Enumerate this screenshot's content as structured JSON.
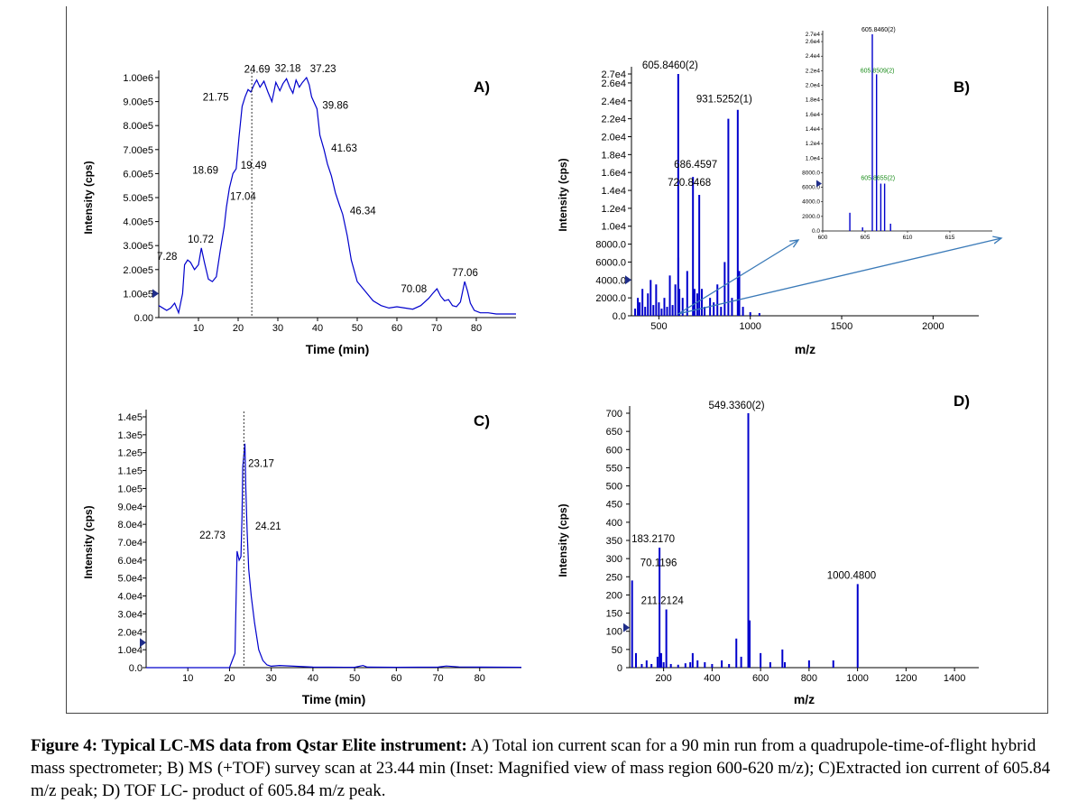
{
  "colors": {
    "trace": "#0000cc",
    "inset_annotation": "#1a8c1a",
    "zoom_arrow": "#3a7ab8",
    "axis": "#000000"
  },
  "caption": {
    "bold": "Figure 4: Typical LC-MS data from Qstar Elite instrument:",
    "text": " A) Total ion current scan for a 90 min run from a quadrupole-time-of-flight hybrid mass spectrometer; B) MS (+TOF) survey scan at 23.44 min (Inset: Magnified view of mass region 600-620 m/z); C)Extracted ion current of  605.84 m/z peak; D) TOF LC- product of  605.84 m/z peak."
  },
  "chart_data": [
    {
      "id": "A",
      "label": "A)",
      "type": "line",
      "xlabel": "Time (min)",
      "ylabel": "Intensity (cps)",
      "xlim": [
        0,
        90
      ],
      "ylim": [
        0,
        1000000
      ],
      "xticks": [
        "10",
        "20",
        "30",
        "40",
        "50",
        "60",
        "70",
        "80"
      ],
      "yticks": [
        "0.00",
        "1.00e5",
        "2.00e5",
        "3.00e5",
        "4.00e5",
        "5.00e5",
        "6.00e5",
        "7.00e5",
        "8.00e5",
        "9.00e5",
        "1.00e6"
      ],
      "marker_line_x": 23.44,
      "series": [
        {
          "x": [
            0,
            2,
            3,
            4,
            5,
            6,
            6.5,
            7.28,
            8,
            9,
            10,
            10.72,
            11.5,
            12.5,
            13.5,
            14.5,
            15.5,
            16.5,
            17.04,
            17.8,
            18.69,
            19.49,
            20.2,
            21,
            21.75,
            22.5,
            23.2,
            24,
            24.69,
            25.5,
            26.5,
            27.5,
            28.5,
            29.5,
            30.5,
            31.3,
            32.18,
            33,
            33.8,
            34.6,
            35.4,
            36.2,
            37.23,
            37.9,
            38.5,
            39.86,
            40.6,
            41.63,
            42.5,
            43.5,
            44.5,
            45.5,
            46.34,
            47.5,
            48.5,
            50,
            52,
            54,
            56,
            58,
            60,
            62,
            64,
            66,
            68,
            69,
            70.08,
            71,
            72,
            73,
            74,
            75,
            76,
            77.06,
            77.8,
            78.5,
            79.5,
            81,
            83,
            85,
            88,
            90
          ],
          "y": [
            50000,
            30000,
            40000,
            60000,
            20000,
            100000,
            220000,
            240000,
            230000,
            200000,
            220000,
            290000,
            230000,
            160000,
            150000,
            170000,
            280000,
            380000,
            460000,
            540000,
            600000,
            620000,
            750000,
            880000,
            920000,
            950000,
            940000,
            970000,
            990000,
            960000,
            985000,
            940000,
            900000,
            980000,
            945000,
            975000,
            995000,
            960000,
            935000,
            990000,
            960000,
            980000,
            1000000,
            970000,
            920000,
            870000,
            760000,
            700000,
            640000,
            590000,
            520000,
            470000,
            430000,
            340000,
            240000,
            150000,
            110000,
            70000,
            50000,
            40000,
            45000,
            40000,
            35000,
            50000,
            80000,
            100000,
            120000,
            90000,
            70000,
            75000,
            50000,
            45000,
            65000,
            150000,
            110000,
            60000,
            30000,
            20000,
            20000,
            15000,
            15000,
            15000
          ]
        }
      ],
      "annotations": [
        {
          "text": "7.28",
          "x": 7.28,
          "y": 240000
        },
        {
          "text": "10.72",
          "x": 10.72,
          "y": 290000
        },
        {
          "text": "18.69",
          "x": 18.69,
          "y": 600000
        },
        {
          "text": "19.49",
          "x": 19.49,
          "y": 620000
        },
        {
          "text": "17.04",
          "x": 17.04,
          "y": 460000
        },
        {
          "text": "21.75",
          "x": 21.75,
          "y": 920000
        },
        {
          "text": "24.69",
          "x": 24.69,
          "y": 990000
        },
        {
          "text": "32.18",
          "x": 32.18,
          "y": 995000
        },
        {
          "text": "37.23",
          "x": 37.23,
          "y": 1000000
        },
        {
          "text": "39.86",
          "x": 39.86,
          "y": 870000
        },
        {
          "text": "41.63",
          "x": 41.63,
          "y": 700000
        },
        {
          "text": "46.34",
          "x": 46.34,
          "y": 430000
        },
        {
          "text": "70.08",
          "x": 70.08,
          "y": 120000
        },
        {
          "text": "77.06",
          "x": 77.06,
          "y": 150000
        }
      ]
    },
    {
      "id": "B",
      "label": "B)",
      "type": "bar",
      "xlabel": "m/z",
      "ylabel": "Intensity (cps)",
      "xlim": [
        350,
        2250
      ],
      "ylim": [
        0,
        27000
      ],
      "xticks": [
        "500",
        "1000",
        "1500",
        "2000"
      ],
      "yticks": [
        "0.0",
        "2000.0",
        "4000.0",
        "6000.0",
        "8000.0",
        "1.0e4",
        "1.2e4",
        "1.4e4",
        "1.6e4",
        "1.8e4",
        "2.0e4",
        "2.2e4",
        "2.4e4",
        "2.6e4",
        "2.7e4"
      ],
      "peaks": {
        "x": [
          370,
          385,
          395,
          410,
          425,
          440,
          455,
          470,
          485,
          500,
          515,
          530,
          545,
          560,
          575,
          590,
          605.85,
          606.35,
          612,
          630,
          655,
          686.46,
          695,
          710,
          720.85,
          735,
          750,
          780,
          800,
          820,
          840,
          860,
          880,
          900,
          931.53,
          940,
          960,
          1000,
          1050
        ],
        "y": [
          800,
          2000,
          1500,
          3000,
          1000,
          2500,
          4000,
          1200,
          3500,
          1500,
          800,
          2000,
          1000,
          4500,
          1200,
          3500,
          27000,
          6500,
          3000,
          2000,
          5000,
          15500,
          3000,
          2500,
          13500,
          3000,
          1000,
          2000,
          1500,
          3500,
          1000,
          6000,
          22000,
          2000,
          23000,
          5000,
          1000,
          400,
          300
        ]
      },
      "annotations": [
        {
          "text": "605.8460(2)",
          "x": 605.85,
          "y": 27000
        },
        {
          "text": "931.5252(1)",
          "x": 931.53,
          "y": 23000
        },
        {
          "text": "686.4597",
          "x": 686.46,
          "y": 15500
        },
        {
          "text": "720.8468",
          "x": 720.85,
          "y": 13500
        }
      ],
      "inset": {
        "xlim": [
          600,
          620
        ],
        "ylim": [
          0,
          27000
        ],
        "xticks": [
          "600",
          "605",
          "610",
          "615"
        ],
        "yticks": [
          "0.0",
          "2000.0",
          "4000.0",
          "6000.0",
          "8000.0",
          "1.0e4",
          "1.2e4",
          "1.4e4",
          "1.6e4",
          "1.8e4",
          "2.0e4",
          "2.2e4",
          "2.4e4",
          "2.6e4",
          "2.7e4"
        ],
        "peaks": {
          "x": [
            603.2,
            604.7,
            605.85,
            606.35,
            606.85,
            607.3,
            608.0
          ],
          "y": [
            2500,
            500,
            27000,
            21500,
            6500,
            6500,
            1000
          ]
        },
        "annotations": [
          {
            "text": "605.8460(2)",
            "x": 605.85,
            "y": 27000,
            "color": "black"
          },
          {
            "text": "605.8509(2)",
            "x": 606.35,
            "y": 21500,
            "color": "green"
          },
          {
            "text": "605.8655(2)",
            "x": 606.85,
            "y": 6500,
            "color": "green"
          }
        ]
      }
    },
    {
      "id": "C",
      "label": "C)",
      "type": "line",
      "xlabel": "Time (min)",
      "ylabel": "Intensity (cps)",
      "xlim": [
        0,
        90
      ],
      "ylim": [
        0,
        140000
      ],
      "xticks": [
        "10",
        "20",
        "30",
        "40",
        "50",
        "60",
        "70",
        "80"
      ],
      "yticks": [
        "0.0",
        "1.0e4",
        "2.0e4",
        "3.0e4",
        "4.0e4",
        "5.0e4",
        "6.0e4",
        "7.0e4",
        "8.0e4",
        "9.0e4",
        "1.0e5",
        "1.1e5",
        "1.2e5",
        "1.3e5",
        "1.4e5"
      ],
      "marker_line_x": 23.44,
      "series": [
        {
          "x": [
            0,
            10,
            20,
            21.3,
            21.8,
            22.3,
            22.73,
            23.0,
            23.17,
            23.4,
            23.7,
            23.9,
            24.21,
            24.6,
            25.2,
            26,
            27,
            28,
            29,
            30,
            32,
            40,
            50,
            52,
            53,
            60,
            70,
            72,
            75,
            80,
            90
          ],
          "y": [
            0,
            0,
            0,
            8000,
            65000,
            60000,
            62000,
            85000,
            112000,
            118000,
            125000,
            100000,
            77000,
            55000,
            40000,
            25000,
            10000,
            4000,
            1500,
            800,
            1200,
            300,
            200,
            1200,
            300,
            200,
            300,
            900,
            400,
            300,
            200
          ]
        }
      ],
      "annotations": [
        {
          "text": "23.17",
          "x": 23.17,
          "y": 112000
        },
        {
          "text": "22.73",
          "x": 22.73,
          "y": 72000
        },
        {
          "text": "24.21",
          "x": 24.21,
          "y": 77000
        }
      ]
    },
    {
      "id": "D",
      "label": "D)",
      "type": "bar",
      "xlabel": "m/z",
      "ylabel": "Intensity (cps)",
      "xlim": [
        60,
        1500
      ],
      "ylim": [
        0,
        700
      ],
      "xticks": [
        "200",
        "400",
        "600",
        "800",
        "1000",
        "1200",
        "1400"
      ],
      "yticks": [
        "0",
        "50",
        "100",
        "150",
        "200",
        "250",
        "300",
        "350",
        "400",
        "450",
        "500",
        "550",
        "600",
        "650",
        "700"
      ],
      "peaks": {
        "x": [
          70.12,
          86,
          110,
          130,
          150,
          175,
          183.22,
          190,
          200,
          211.21,
          230,
          260,
          290,
          310,
          320,
          340,
          370,
          400,
          440,
          470,
          500,
          520,
          549.34,
          555,
          600,
          640,
          690,
          700,
          800,
          900,
          1000.48
        ],
        "y": [
          240,
          40,
          10,
          20,
          10,
          30,
          330,
          40,
          15,
          160,
          10,
          8,
          12,
          15,
          40,
          20,
          15,
          10,
          20,
          10,
          80,
          30,
          700,
          130,
          40,
          15,
          50,
          15,
          20,
          20,
          230
        ]
      },
      "annotations": [
        {
          "text": "549.3360(2)",
          "x": 549.34,
          "y": 700
        },
        {
          "text": "183.2170",
          "x": 183.22,
          "y": 330
        },
        {
          "text": "70.1196",
          "x": 70.12,
          "y": 240
        },
        {
          "text": "211.2124",
          "x": 211.21,
          "y": 160
        },
        {
          "text": "1000.4800",
          "x": 1000.48,
          "y": 230
        }
      ]
    }
  ]
}
